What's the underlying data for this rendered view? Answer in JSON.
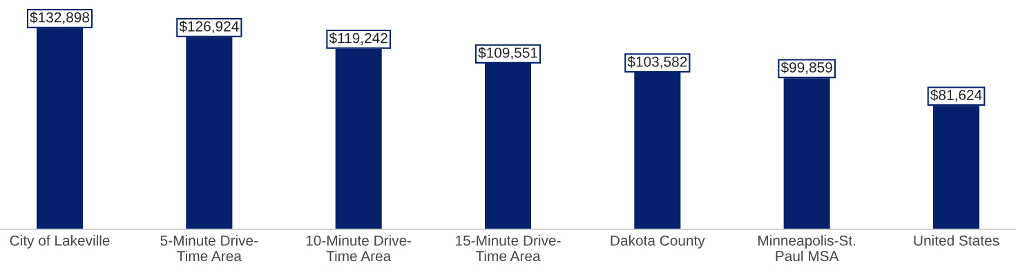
{
  "chart_data": {
    "type": "bar",
    "categories": [
      "City of Lakeville",
      "5-Minute Drive-\nTime Area",
      "10-Minute Drive-\nTime Area",
      "15-Minute Drive-\nTime Area",
      "Dakota County",
      "Minneapolis-St.\nPaul MSA",
      "United States"
    ],
    "values": [
      132898,
      126924,
      119242,
      109551,
      103582,
      99859,
      81624
    ],
    "value_labels": [
      "$132,898",
      "$126,924",
      "$119,242",
      "$109,551",
      "$103,582",
      "$99,859",
      "$81,624"
    ],
    "color": "#06216c",
    "grid": false,
    "legend": false,
    "tick_labels": "x"
  }
}
